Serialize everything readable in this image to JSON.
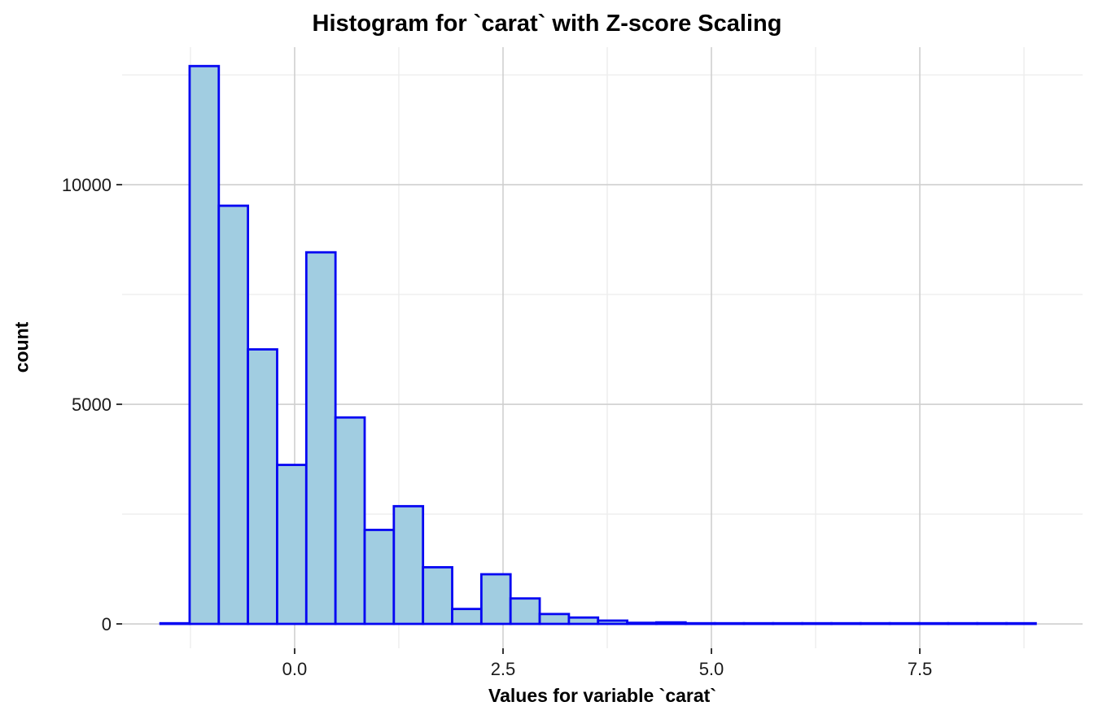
{
  "chart": {
    "title": "Histogram for `carat` with Z-score Scaling",
    "xlabel": "Values for variable `carat`",
    "ylabel": "count"
  },
  "chart_data": {
    "type": "bar",
    "subtype": "histogram",
    "title": "Histogram for `carat` with Z-score Scaling",
    "xlabel": "Values for variable `carat`",
    "ylabel": "count",
    "bin_start": -1.61,
    "bin_width": 0.35,
    "counts": [
      0,
      12700,
      9520,
      6250,
      3620,
      8460,
      4700,
      2140,
      2680,
      1290,
      340,
      1130,
      580,
      225,
      145,
      75,
      25,
      35,
      15,
      10,
      8,
      5,
      4,
      3,
      2,
      2,
      1,
      1,
      0,
      1
    ],
    "x_ticks": [
      {
        "value": 0.0,
        "label": "0.0"
      },
      {
        "value": 2.5,
        "label": "2.5"
      },
      {
        "value": 5.0,
        "label": "5.0"
      },
      {
        "value": 7.5,
        "label": "7.5"
      }
    ],
    "x_minor": [
      -1.25,
      1.25,
      3.75,
      6.25,
      8.75
    ],
    "y_ticks": [
      {
        "value": 0,
        "label": "0"
      },
      {
        "value": 5000,
        "label": "5000"
      },
      {
        "value": 10000,
        "label": "10000"
      }
    ],
    "y_minor": [
      2500,
      7500,
      12500
    ],
    "xlim": [
      -2.07,
      9.453
    ],
    "ylim": [
      -555,
      13130
    ],
    "grid": true,
    "legend": "none",
    "colors": {
      "bar_fill": "#A1CDE1",
      "bar_stroke": "#0606F2",
      "grid_major": "#CFCFCF",
      "grid_minor": "#EDEDED",
      "tick": "#333333",
      "text": "#1a1a1a",
      "panel_bg": "#ffffff"
    }
  }
}
